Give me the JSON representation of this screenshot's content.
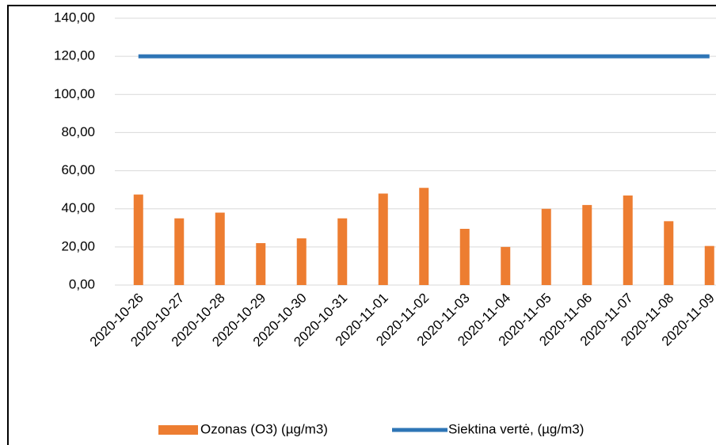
{
  "chart_data": {
    "type": "bar",
    "categories": [
      "2020-10-26",
      "2020-10-27",
      "2020-10-28",
      "2020-10-29",
      "2020-10-30",
      "2020-10-31",
      "2020-11-01",
      "2020-11-02",
      "2020-11-03",
      "2020-11-04",
      "2020-11-05",
      "2020-11-06",
      "2020-11-07",
      "2020-11-08",
      "2020-11-09"
    ],
    "series": [
      {
        "name": "Ozonas (O3) (µg/m3)",
        "color": "#ed7d31",
        "type": "bar",
        "values": [
          47.5,
          35,
          38,
          22,
          24.5,
          35,
          48,
          51,
          29.5,
          20,
          40,
          42,
          47,
          33.5,
          20.5
        ]
      },
      {
        "name": "Siektina vertė, (µg/m3)",
        "color": "#2e75b6",
        "type": "line",
        "values": [
          120,
          120,
          120,
          120,
          120,
          120,
          120,
          120,
          120,
          120,
          120,
          120,
          120,
          120,
          120
        ]
      }
    ],
    "ylim": [
      0,
      140
    ],
    "yticks": [
      {
        "value": 0,
        "label": "0,00"
      },
      {
        "value": 20,
        "label": "20,00"
      },
      {
        "value": 40,
        "label": "40,00"
      },
      {
        "value": 60,
        "label": "60,00"
      },
      {
        "value": 80,
        "label": "80,00"
      },
      {
        "value": 100,
        "label": "100,00"
      },
      {
        "value": 120,
        "label": "120,00"
      },
      {
        "value": 140,
        "label": "140,00"
      }
    ],
    "grid": true,
    "legend": "bottom"
  }
}
